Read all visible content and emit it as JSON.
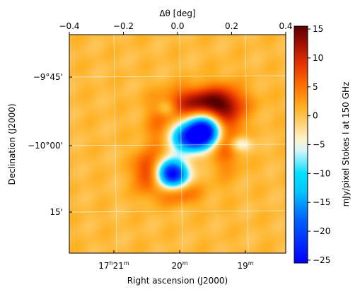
{
  "chart_data": {
    "type": "heatmap",
    "title": "",
    "top_axis": {
      "label": "Δθ [deg]",
      "ticks": [
        "−0.4",
        "−0.2",
        "0.0",
        "0.2",
        "0.4"
      ],
      "tick_values": [
        -0.4,
        -0.2,
        0.0,
        0.2,
        0.4
      ],
      "range": [
        -0.4,
        0.4
      ]
    },
    "x_axis": {
      "label": "Right ascension (J2000)",
      "ticks": [
        {
          "main": "17",
          "sup1": "h",
          "mid": "21",
          "sup2": "m"
        },
        {
          "main": "20",
          "sup2": "m"
        },
        {
          "main": "19",
          "sup2": "m"
        }
      ]
    },
    "y_axis": {
      "label": "Declination (J2000)",
      "ticks": [
        "−9°45'",
        "−10°00'",
        "15'"
      ]
    },
    "colorbar": {
      "label": "mJy/pixel Stokes I at 150 GHz",
      "range": [
        -25.5,
        15.5
      ],
      "ticks": [
        15,
        10,
        5,
        0,
        -5,
        -10,
        -15,
        -20,
        -25
      ],
      "tick_labels": [
        "15",
        "10",
        "5",
        "0",
        "−5",
        "−10",
        "−15",
        "−20",
        "−25"
      ],
      "colormap_stops": [
        {
          "v": -25.5,
          "c": "#0000ff"
        },
        {
          "v": -18.0,
          "c": "#0060ff"
        },
        {
          "v": -13.0,
          "c": "#00c8ff"
        },
        {
          "v": -10.0,
          "c": "#00e0ff"
        },
        {
          "v": -6.0,
          "c": "#d8f6fb"
        },
        {
          "v": -4.0,
          "c": "#fff2c8"
        },
        {
          "v": -1.0,
          "c": "#ffcd6a"
        },
        {
          "v": 1.5,
          "c": "#ffb020"
        },
        {
          "v": 5.0,
          "c": "#ff7400"
        },
        {
          "v": 9.0,
          "c": "#e53100"
        },
        {
          "v": 12.5,
          "c": "#a01000"
        },
        {
          "v": 15.5,
          "c": "#5a0000"
        }
      ]
    },
    "map_background_value": 0.5,
    "map_features": [
      {
        "kind": "negative",
        "dx": 0.1,
        "dy": 0.05,
        "peak": -27,
        "sigma_x": 0.045,
        "sigma_y": 0.038
      },
      {
        "kind": "negative",
        "dx": 0.04,
        "dy": 0.02,
        "peak": -20,
        "sigma_x": 0.05,
        "sigma_y": 0.035
      },
      {
        "kind": "negative",
        "dx": -0.02,
        "dy": -0.11,
        "peak": -27,
        "sigma_x": 0.04,
        "sigma_y": 0.035
      },
      {
        "kind": "negative",
        "dx": 0.23,
        "dy": 0.0,
        "peak": -8,
        "sigma_x": 0.03,
        "sigma_y": 0.02
      },
      {
        "kind": "negative",
        "dx": -0.04,
        "dy": 0.13,
        "peak": -5,
        "sigma_x": 0.025,
        "sigma_y": 0.02
      },
      {
        "kind": "positive",
        "dx": 0.1,
        "dy": 0.15,
        "peak": 14,
        "sigma_x": 0.09,
        "sigma_y": 0.04
      },
      {
        "kind": "positive",
        "dx": 0.18,
        "dy": 0.05,
        "peak": 9,
        "sigma_x": 0.04,
        "sigma_y": 0.09
      },
      {
        "kind": "positive",
        "dx": -0.11,
        "dy": -0.1,
        "peak": 9,
        "sigma_x": 0.035,
        "sigma_y": 0.05
      },
      {
        "kind": "positive",
        "dx": 0.0,
        "dy": -0.18,
        "peak": 6,
        "sigma_x": 0.06,
        "sigma_y": 0.03
      },
      {
        "kind": "positive",
        "dx": -0.06,
        "dy": 0.05,
        "peak": 5,
        "sigma_x": 0.04,
        "sigma_y": 0.06
      }
    ]
  }
}
